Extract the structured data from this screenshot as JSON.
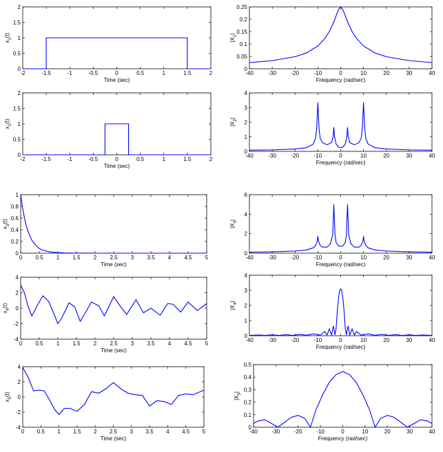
{
  "chart_data": [
    {
      "type": "line",
      "ylabel_main": "x",
      "ylabel_sub": "1",
      "ylabel_tail": "(t)",
      "xlabel": "Time (sec)",
      "xlim": [
        -2,
        2
      ],
      "ylim": [
        0,
        2
      ],
      "xticks": [
        "-2",
        "-1.5",
        "-1",
        "-0.5",
        "0",
        "0.5",
        "1",
        "1.5",
        "2"
      ],
      "yticks": [
        "0",
        "0.5",
        "1",
        "1.5",
        "2"
      ],
      "x": [
        -2,
        -1.5,
        -1.5,
        1.5,
        1.5,
        2
      ],
      "y": [
        0,
        0,
        1,
        1,
        0,
        0
      ]
    },
    {
      "type": "line",
      "ylabel_main": "|X",
      "ylabel_sub": "1",
      "ylabel_tail": "|",
      "xlabel": "Frequency (rad/sec)",
      "xlim": [
        -40,
        40
      ],
      "ylim": [
        0,
        0.25
      ],
      "xticks": [
        "-40",
        "-30",
        "-20",
        "-10",
        "0",
        "10",
        "20",
        "30",
        "40"
      ],
      "yticks": [
        "0",
        "0.05",
        "0.1",
        "0.15",
        "0.2",
        "0.25"
      ],
      "x": [
        -40,
        -30,
        -20,
        -15,
        -10,
        -7,
        -5,
        -3,
        -2,
        -1,
        0,
        1,
        2,
        3,
        5,
        7,
        10,
        15,
        20,
        30,
        40
      ],
      "y": [
        0.025,
        0.033,
        0.049,
        0.064,
        0.092,
        0.122,
        0.15,
        0.19,
        0.214,
        0.238,
        0.25,
        0.238,
        0.214,
        0.19,
        0.15,
        0.122,
        0.092,
        0.064,
        0.049,
        0.033,
        0.025
      ]
    },
    {
      "type": "line",
      "ylabel_main": "x",
      "ylabel_sub": "2",
      "ylabel_tail": "(t)",
      "xlabel": "Time (sec)",
      "xlim": [
        -2,
        2
      ],
      "ylim": [
        0,
        2
      ],
      "xticks": [
        "-2",
        "-1.5",
        "-1",
        "-0.5",
        "0",
        "0.5",
        "1",
        "1.5",
        "2"
      ],
      "yticks": [
        "0",
        "0.5",
        "1",
        "1.5",
        "2"
      ],
      "x": [
        -2,
        -0.25,
        -0.25,
        0.25,
        0.25,
        2
      ],
      "y": [
        0,
        0,
        1,
        1,
        0,
        0
      ]
    },
    {
      "type": "line",
      "ylabel_main": "|X",
      "ylabel_sub": "2",
      "ylabel_tail": "|",
      "xlabel": "Frequency (rad/sec)",
      "xlim": [
        -40,
        40
      ],
      "ylim": [
        0,
        4
      ],
      "xticks": [
        "-40",
        "-30",
        "-20",
        "-10",
        "0",
        "10",
        "20",
        "30",
        "40"
      ],
      "yticks": [
        "0",
        "1",
        "2",
        "3",
        "4"
      ],
      "x": [
        -40,
        -30,
        -20,
        -15,
        -12,
        -11,
        -10.5,
        -10,
        -9.5,
        -9,
        -8,
        -6,
        -4,
        -3.3,
        -3,
        -2.7,
        -2,
        -1,
        0,
        1,
        2,
        2.7,
        3,
        3.3,
        4,
        6,
        8,
        9,
        9.5,
        10,
        10.5,
        11,
        12,
        15,
        20,
        30,
        40
      ],
      "y": [
        0.08,
        0.1,
        0.16,
        0.25,
        0.5,
        0.9,
        1.6,
        3.35,
        1.6,
        0.9,
        0.6,
        0.45,
        0.6,
        1.0,
        1.65,
        1.0,
        0.5,
        0.3,
        0.25,
        0.3,
        0.5,
        1.0,
        1.65,
        1.0,
        0.6,
        0.45,
        0.6,
        0.9,
        1.6,
        3.35,
        1.6,
        0.9,
        0.5,
        0.25,
        0.16,
        0.1,
        0.08
      ]
    },
    {
      "type": "line",
      "ylabel_main": "x",
      "ylabel_sub": "3",
      "ylabel_tail": "(t)",
      "xlabel": "Time (sec)",
      "xlim": [
        0,
        5
      ],
      "ylim": [
        0,
        1
      ],
      "xticks": [
        "0",
        "0.5",
        "1",
        "1.5",
        "2",
        "2.5",
        "3",
        "3.5",
        "4",
        "4.5",
        "5"
      ],
      "yticks": [
        "0",
        "0.2",
        "0.4",
        "0.6",
        "0.8",
        "1"
      ],
      "x": [
        0,
        0.05,
        0.1,
        0.15,
        0.2,
        0.3,
        0.4,
        0.5,
        0.6,
        0.8,
        1,
        1.2,
        1.5,
        2,
        3,
        4,
        5
      ],
      "y": [
        1,
        0.78,
        0.61,
        0.47,
        0.37,
        0.22,
        0.14,
        0.08,
        0.05,
        0.02,
        0.01,
        0.004,
        0.001,
        0,
        0,
        0,
        0
      ]
    },
    {
      "type": "line",
      "ylabel_main": "|X",
      "ylabel_sub": "3",
      "ylabel_tail": "|",
      "xlabel": "Frequency (rad/sec)",
      "xlim": [
        -40,
        40
      ],
      "ylim": [
        0,
        6
      ],
      "xticks": [
        "-40",
        "-30",
        "-20",
        "-10",
        "0",
        "10",
        "20",
        "30",
        "40"
      ],
      "yticks": [
        "0",
        "2",
        "4",
        "6"
      ],
      "x": [
        -40,
        -30,
        -20,
        -15,
        -12,
        -11,
        -10.3,
        -10,
        -9.7,
        -9,
        -8,
        -6,
        -4.5,
        -3.5,
        -3,
        -2.5,
        -2,
        -1,
        0,
        1,
        2,
        2.5,
        3,
        3.5,
        4.5,
        6,
        8,
        9,
        9.7,
        10,
        10.3,
        11,
        12,
        15,
        20,
        30,
        40
      ],
      "y": [
        0.1,
        0.14,
        0.22,
        0.33,
        0.55,
        0.8,
        1.2,
        1.75,
        1.2,
        0.8,
        0.62,
        0.62,
        0.95,
        1.9,
        5.0,
        1.9,
        1.1,
        0.75,
        0.7,
        0.75,
        1.1,
        1.9,
        5.0,
        1.9,
        0.95,
        0.62,
        0.62,
        0.8,
        1.2,
        1.75,
        1.2,
        0.8,
        0.55,
        0.33,
        0.22,
        0.14,
        0.1
      ]
    },
    {
      "type": "line",
      "ylabel_main": "x",
      "ylabel_sub": "4",
      "ylabel_tail": "(t)",
      "xlabel": "Time (sec)",
      "xlim": [
        0,
        5
      ],
      "ylim": [
        -4,
        4
      ],
      "xticks": [
        "0",
        "0.5",
        "1",
        "1.5",
        "2",
        "2.5",
        "3",
        "3.5",
        "4",
        "4.5",
        "5"
      ],
      "yticks": [
        "-4",
        "-2",
        "0",
        "2",
        "4"
      ],
      "x": [
        0,
        0.1,
        0.2,
        0.3,
        0.45,
        0.6,
        0.75,
        0.9,
        1.0,
        1.1,
        1.3,
        1.45,
        1.6,
        1.75,
        1.9,
        2.1,
        2.25,
        2.5,
        2.7,
        2.85,
        3.1,
        3.3,
        3.5,
        3.75,
        3.95,
        4.1,
        4.3,
        4.5,
        4.75,
        5
      ],
      "y": [
        3.0,
        2.0,
        0.2,
        -1.0,
        0.4,
        1.6,
        0.9,
        -0.8,
        -2.0,
        -1.3,
        0.7,
        0.2,
        -1.7,
        -0.5,
        0.8,
        0.3,
        -1.0,
        1.5,
        0.1,
        -0.8,
        1.1,
        -0.6,
        0.0,
        -0.9,
        0.6,
        0.5,
        -0.5,
        0.8,
        -0.3,
        0.6
      ]
    },
    {
      "type": "line",
      "ylabel_main": "|X",
      "ylabel_sub": "4",
      "ylabel_tail": "|",
      "xlabel": "Frequency (rad/sec)",
      "xlim": [
        -40,
        40
      ],
      "ylim": [
        0,
        4
      ],
      "xticks": [
        "-40",
        "-30",
        "-20",
        "-10",
        "0",
        "10",
        "20",
        "30",
        "40"
      ],
      "yticks": [
        "0",
        "1",
        "2",
        "3",
        "4"
      ],
      "x": [
        -40,
        -36,
        -33,
        -30,
        -27,
        -24,
        -21,
        -18,
        -15,
        -12,
        -9,
        -7,
        -6,
        -5,
        -4,
        -3.2,
        -2.5,
        -2,
        -1.5,
        -1,
        -0.5,
        0,
        0.5,
        1,
        1.5,
        2,
        2.5,
        3.2,
        4,
        5,
        6,
        7,
        9,
        12,
        15,
        18,
        21,
        24,
        27,
        30,
        33,
        36,
        40
      ],
      "y": [
        0.02,
        0.05,
        0.02,
        0.06,
        0.02,
        0.07,
        0.02,
        0.09,
        0.03,
        0.12,
        0.04,
        0.28,
        0.05,
        0.45,
        0.05,
        0.65,
        0.05,
        0.5,
        1.6,
        2.4,
        2.95,
        3.1,
        2.95,
        2.4,
        1.6,
        0.5,
        0.05,
        0.65,
        0.05,
        0.45,
        0.05,
        0.28,
        0.04,
        0.12,
        0.03,
        0.09,
        0.02,
        0.07,
        0.02,
        0.06,
        0.02,
        0.05,
        0.02
      ]
    },
    {
      "type": "line",
      "ylabel_main": "x",
      "ylabel_sub": "5",
      "ylabel_tail": "(t)",
      "xlabel": "Time (sec)",
      "xlim": [
        0,
        5
      ],
      "ylim": [
        -4,
        4
      ],
      "xticks": [
        "0",
        "0.5",
        "1",
        "1.5",
        "2",
        "2.5",
        "3",
        "3.5",
        "4",
        "4.5",
        "5"
      ],
      "yticks": [
        "-4",
        "-2",
        "0",
        "2",
        "4"
      ],
      "x": [
        0,
        0.15,
        0.3,
        0.45,
        0.6,
        0.75,
        0.9,
        1.0,
        1.15,
        1.3,
        1.5,
        1.7,
        1.9,
        2.1,
        2.3,
        2.5,
        2.7,
        2.9,
        3.1,
        3.3,
        3.5,
        3.7,
        3.9,
        4.1,
        4.3,
        4.5,
        4.7,
        5
      ],
      "y": [
        3.9,
        2.6,
        0.8,
        0.9,
        0.8,
        -0.5,
        -1.8,
        -2.3,
        -1.5,
        -1.5,
        -1.9,
        -1.0,
        0.7,
        0.5,
        1.1,
        1.9,
        1.1,
        0.5,
        0.3,
        0.2,
        -1.2,
        -0.5,
        -0.6,
        -1.0,
        0.2,
        0.4,
        0.3,
        0.9
      ]
    },
    {
      "type": "line",
      "ylabel_main": "|X",
      "ylabel_sub": "5",
      "ylabel_tail": "|",
      "xlabel": "Frequency (rad/sec)",
      "xlim": [
        -40,
        40
      ],
      "ylim": [
        0,
        0.5
      ],
      "xticks": [
        "-40",
        "-30",
        "-20",
        "-10",
        "0",
        "10",
        "20",
        "30",
        "40"
      ],
      "yticks": [
        "0",
        "0.1",
        "0.2",
        "0.3",
        "0.4",
        "0.5"
      ],
      "x": [
        -40,
        -38,
        -35,
        -32,
        -29,
        -26,
        -23,
        -20,
        -17,
        -14.5,
        -12,
        -9,
        -6,
        -3,
        0,
        3,
        6,
        9,
        12,
        14.5,
        17,
        20,
        23,
        26,
        29,
        32,
        35,
        38,
        40
      ],
      "y": [
        0.03,
        0.05,
        0.06,
        0.03,
        0.0,
        0.04,
        0.08,
        0.095,
        0.07,
        0.0,
        0.14,
        0.26,
        0.36,
        0.42,
        0.445,
        0.42,
        0.36,
        0.26,
        0.14,
        0.0,
        0.07,
        0.095,
        0.08,
        0.04,
        0.0,
        0.03,
        0.06,
        0.05,
        0.03
      ]
    }
  ]
}
